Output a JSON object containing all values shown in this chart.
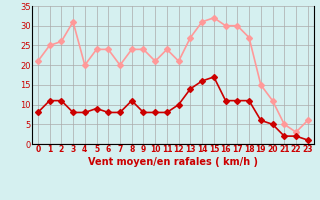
{
  "x": [
    0,
    1,
    2,
    3,
    4,
    5,
    6,
    7,
    8,
    9,
    10,
    11,
    12,
    13,
    14,
    15,
    16,
    17,
    18,
    19,
    20,
    21,
    22,
    23
  ],
  "avg_wind": [
    8,
    11,
    11,
    8,
    8,
    9,
    8,
    8,
    11,
    8,
    8,
    8,
    10,
    14,
    16,
    17,
    11,
    11,
    11,
    6,
    5,
    2,
    2,
    1
  ],
  "gust_wind": [
    21,
    25,
    26,
    31,
    20,
    24,
    24,
    20,
    24,
    24,
    21,
    24,
    21,
    27,
    31,
    32,
    30,
    30,
    27,
    15,
    11,
    5,
    3,
    6
  ],
  "avg_color": "#cc0000",
  "gust_color": "#ff9999",
  "bg_color": "#d5f0f0",
  "grid_color": "#aaaaaa",
  "xlabel": "Vent moyen/en rafales ( km/h )",
  "ylabel": "",
  "ylim": [
    0,
    35
  ],
  "yticks": [
    0,
    5,
    10,
    15,
    20,
    25,
    30,
    35
  ],
  "marker_size": 3,
  "linewidth": 1.2
}
